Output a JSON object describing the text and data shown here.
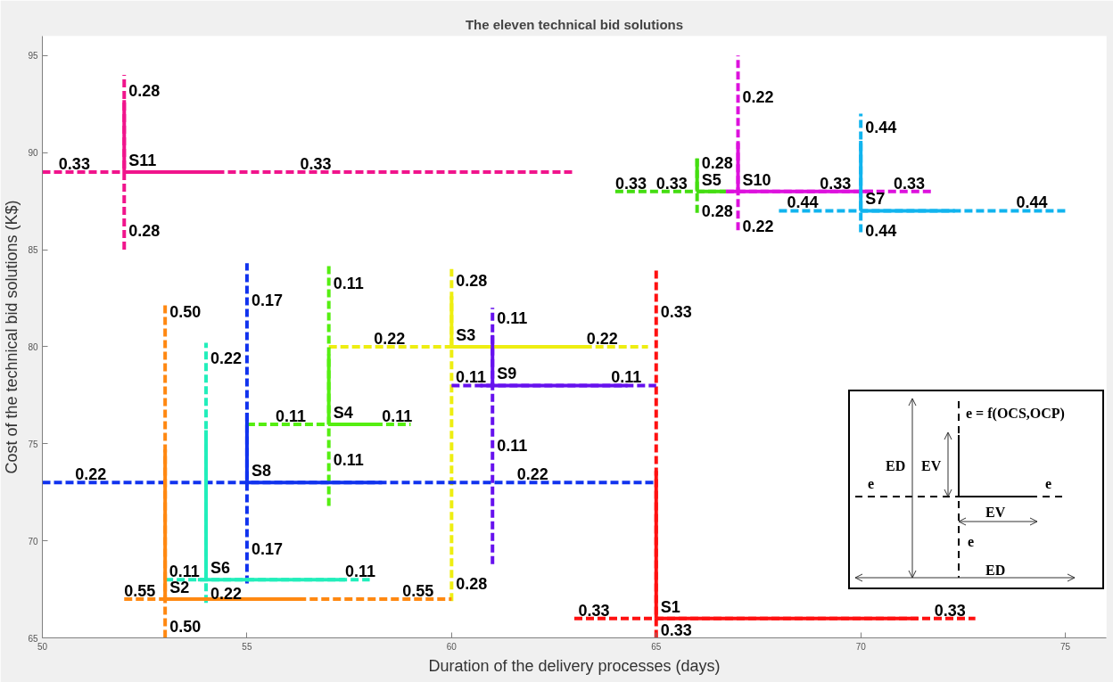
{
  "chart_data": {
    "type": "line",
    "title": "The eleven technical bid solutions",
    "xlabel": "Duration of the delivery processes (days)",
    "ylabel": "Cost of the technical bid solutions (K$)",
    "xlim": [
      50,
      76
    ],
    "ylim": [
      65,
      96
    ],
    "xticks": [
      50,
      55,
      60,
      65,
      70,
      75
    ],
    "yticks": [
      65,
      70,
      75,
      80,
      85,
      90,
      95
    ],
    "grid": false,
    "series": [
      {
        "color": "#f0148c",
        "line_style": "dashed",
        "x": [
          50,
          63
        ],
        "values": [
          89,
          89
        ]
      },
      {
        "color": "#f0148c",
        "line_style": "dashed",
        "x": [
          52,
          52
        ],
        "values": [
          85,
          94
        ]
      },
      {
        "color": "#f0148c",
        "line_style": "solid",
        "x": [
          52,
          54.3
        ],
        "values": [
          89,
          89
        ]
      },
      {
        "color": "#f0148c",
        "line_style": "solid",
        "x": [
          52,
          52
        ],
        "values": [
          89,
          92.7
        ]
      },
      {
        "color": "#dd11dd",
        "line_style": "dashed",
        "x": [
          66.7,
          71.8
        ],
        "values": [
          88,
          88
        ]
      },
      {
        "color": "#dd11dd",
        "line_style": "dashed",
        "x": [
          67,
          67
        ],
        "values": [
          86,
          95
        ]
      },
      {
        "color": "#dd11dd",
        "line_style": "solid",
        "x": [
          66.7,
          70.3
        ],
        "values": [
          88,
          88
        ]
      },
      {
        "color": "#dd11dd",
        "line_style": "solid",
        "x": [
          67,
          67
        ],
        "values": [
          88,
          90.5
        ]
      },
      {
        "color": "#44dd11",
        "line_style": "dashed",
        "x": [
          64,
          66.7
        ],
        "values": [
          88,
          88
        ]
      },
      {
        "color": "#44dd11",
        "line_style": "dashed",
        "x": [
          66,
          66
        ],
        "values": [
          86.9,
          89.7
        ]
      },
      {
        "color": "#44dd11",
        "line_style": "solid",
        "x": [
          66,
          66.7
        ],
        "values": [
          88,
          88
        ]
      },
      {
        "color": "#44dd11",
        "line_style": "solid",
        "x": [
          66,
          66
        ],
        "values": [
          88,
          89.7
        ]
      },
      {
        "color": "#11b4ee",
        "line_style": "dashed",
        "x": [
          68,
          75
        ],
        "values": [
          87,
          87
        ]
      },
      {
        "color": "#11b4ee",
        "line_style": "dashed",
        "x": [
          70,
          70
        ],
        "values": [
          85.9,
          92
        ]
      },
      {
        "color": "#11b4ee",
        "line_style": "solid",
        "x": [
          70,
          72.3
        ],
        "values": [
          87,
          87
        ]
      },
      {
        "color": "#11b4ee",
        "line_style": "solid",
        "x": [
          70,
          70
        ],
        "values": [
          87,
          90.6
        ]
      },
      {
        "color": "#ff1111",
        "line_style": "dashed",
        "x": [
          63,
          72.8
        ],
        "values": [
          66,
          66
        ]
      },
      {
        "color": "#ff1111",
        "line_style": "dashed",
        "x": [
          65,
          65
        ],
        "values": [
          65,
          84
        ]
      },
      {
        "color": "#ff1111",
        "line_style": "solid",
        "x": [
          65,
          71.4
        ],
        "values": [
          66,
          66
        ]
      },
      {
        "color": "#ff1111",
        "line_style": "solid",
        "x": [
          65,
          65
        ],
        "values": [
          66,
          73.6
        ]
      },
      {
        "color": "#eeee11",
        "line_style": "dashed",
        "x": [
          57,
          64.8
        ],
        "values": [
          80,
          80
        ]
      },
      {
        "color": "#eeee11",
        "line_style": "dashed",
        "x": [
          60,
          60
        ],
        "values": [
          66.9,
          84
        ]
      },
      {
        "color": "#eeee11",
        "line_style": "solid",
        "x": [
          60,
          63.3
        ],
        "values": [
          80,
          80
        ]
      },
      {
        "color": "#eeee11",
        "line_style": "solid",
        "x": [
          60,
          60
        ],
        "values": [
          80,
          82.6
        ]
      },
      {
        "color": "#6611ee",
        "line_style": "dashed",
        "x": [
          60,
          65
        ],
        "values": [
          78,
          78
        ]
      },
      {
        "color": "#6611ee",
        "line_style": "dashed",
        "x": [
          61,
          61
        ],
        "values": [
          68.8,
          82
        ]
      },
      {
        "color": "#6611ee",
        "line_style": "solid",
        "x": [
          60.7,
          64.3
        ],
        "values": [
          78,
          78
        ]
      },
      {
        "color": "#6611ee",
        "line_style": "solid",
        "x": [
          61,
          61
        ],
        "values": [
          78,
          80.6
        ]
      },
      {
        "color": "#1133ee",
        "line_style": "dashed",
        "x": [
          50,
          65
        ],
        "values": [
          73,
          73
        ]
      },
      {
        "color": "#1133ee",
        "line_style": "dashed",
        "x": [
          55,
          55
        ],
        "values": [
          67.8,
          84.3
        ]
      },
      {
        "color": "#1133ee",
        "line_style": "solid",
        "x": [
          55,
          58.3
        ],
        "values": [
          73,
          73
        ]
      },
      {
        "color": "#1133ee",
        "line_style": "solid",
        "x": [
          55,
          55
        ],
        "values": [
          73,
          76.6
        ]
      },
      {
        "color": "#55ee11",
        "line_style": "dashed",
        "x": [
          55,
          59
        ],
        "values": [
          76,
          76
        ]
      },
      {
        "color": "#55ee11",
        "line_style": "dashed",
        "x": [
          57,
          57
        ],
        "values": [
          71.8,
          84.2
        ]
      },
      {
        "color": "#55ee11",
        "line_style": "solid",
        "x": [
          57,
          58.3
        ],
        "values": [
          76,
          76
        ]
      },
      {
        "color": "#55ee11",
        "line_style": "solid",
        "x": [
          57,
          57
        ],
        "values": [
          76,
          79.6
        ]
      },
      {
        "color": "#22eebb",
        "line_style": "dashed",
        "x": [
          53,
          58
        ],
        "values": [
          68,
          68
        ]
      },
      {
        "color": "#22eebb",
        "line_style": "dashed",
        "x": [
          54,
          54
        ],
        "values": [
          66.8,
          80.2
        ]
      },
      {
        "color": "#22eebb",
        "line_style": "solid",
        "x": [
          53.8,
          57.4
        ],
        "values": [
          68,
          68
        ]
      },
      {
        "color": "#22eebb",
        "line_style": "solid",
        "x": [
          54,
          54
        ],
        "values": [
          68,
          75.7
        ]
      },
      {
        "color": "#ff8811",
        "line_style": "dashed",
        "x": [
          52,
          60
        ],
        "values": [
          67,
          67
        ]
      },
      {
        "color": "#ff8811",
        "line_style": "dashed",
        "x": [
          53,
          53
        ],
        "values": [
          65,
          82.2
        ]
      },
      {
        "color": "#ff8811",
        "line_style": "solid",
        "x": [
          53,
          56.3
        ],
        "values": [
          67,
          67
        ]
      },
      {
        "color": "#ff8811",
        "line_style": "solid",
        "x": [
          53,
          53
        ],
        "values": [
          67,
          74.7
        ]
      }
    ],
    "annotations": [
      {
        "text": "0.33",
        "x": 50.4,
        "y": 89
      },
      {
        "text": "S11",
        "x": 52,
        "y": 89
      },
      {
        "text": "0.33",
        "x": 56.3,
        "y": 89
      },
      {
        "text": "0.28",
        "x": 52,
        "y": 93.2
      },
      {
        "text": "0.28",
        "x": 52,
        "y": 86.0
      },
      {
        "text": "S10",
        "x": 67,
        "y": 88
      },
      {
        "text": "0.22",
        "x": 67,
        "y": 92.9
      },
      {
        "text": "0.22",
        "x": 67,
        "y": 86.2
      },
      {
        "text": "0.33",
        "x": 69.0,
        "y": 88
      },
      {
        "text": "0.33",
        "x": 70.8,
        "y": 88
      },
      {
        "text": "0.33",
        "x": 64.0,
        "y": 88
      },
      {
        "text": "0.33",
        "x": 65.0,
        "y": 88
      },
      {
        "text": "S5",
        "x": 66,
        "y": 88
      },
      {
        "text": "0.28",
        "x": 66,
        "y": 89.5
      },
      {
        "text": "0.28",
        "x": 66,
        "y": 87.0
      },
      {
        "text": "S7",
        "x": 70,
        "y": 87
      },
      {
        "text": "0.44",
        "x": 70,
        "y": 91.3
      },
      {
        "text": "0.44",
        "x": 70,
        "y": 86.0
      },
      {
        "text": "0.44",
        "x": 68.2,
        "y": 87
      },
      {
        "text": "0.44",
        "x": 73.8,
        "y": 87
      },
      {
        "text": "0.33",
        "x": 63.1,
        "y": 66
      },
      {
        "text": "S1",
        "x": 65,
        "y": 66
      },
      {
        "text": "0.33",
        "x": 65,
        "y": 65.4
      },
      {
        "text": "0.33",
        "x": 65,
        "y": 81.8
      },
      {
        "text": "0.33",
        "x": 71.8,
        "y": 66
      },
      {
        "text": "0.22",
        "x": 58.1,
        "y": 80
      },
      {
        "text": "S3",
        "x": 60,
        "y": 80
      },
      {
        "text": "0.22",
        "x": 63.3,
        "y": 80
      },
      {
        "text": "0.28",
        "x": 60,
        "y": 83.4
      },
      {
        "text": "0.28",
        "x": 60,
        "y": 67.8
      },
      {
        "text": "0.11",
        "x": 61,
        "y": 81.5
      },
      {
        "text": "0.11",
        "x": 60.1,
        "y": 78
      },
      {
        "text": "S9",
        "x": 61,
        "y": 78
      },
      {
        "text": "0.11",
        "x": 63.9,
        "y": 78
      },
      {
        "text": "0.11",
        "x": 61,
        "y": 74.9
      },
      {
        "text": "0.22",
        "x": 50.8,
        "y": 73
      },
      {
        "text": "S8",
        "x": 55,
        "y": 73
      },
      {
        "text": "0.22",
        "x": 61.6,
        "y": 73
      },
      {
        "text": "0.17",
        "x": 55,
        "y": 82.4
      },
      {
        "text": "0.17",
        "x": 55,
        "y": 69.6
      },
      {
        "text": "0.11",
        "x": 55.7,
        "y": 76
      },
      {
        "text": "S4",
        "x": 57,
        "y": 76
      },
      {
        "text": "0.11",
        "x": 58.3,
        "y": 76
      },
      {
        "text": "0.11",
        "x": 57,
        "y": 83.3
      },
      {
        "text": "0.11",
        "x": 57,
        "y": 74.2
      },
      {
        "text": "0.11",
        "x": 53.1,
        "y": 68
      },
      {
        "text": "S6",
        "x": 54,
        "y": 68
      },
      {
        "text": "0.11",
        "x": 57.4,
        "y": 68
      },
      {
        "text": "0.22",
        "x": 54,
        "y": 79.4
      },
      {
        "text": "0.22",
        "x": 54,
        "y": 67.3
      },
      {
        "text": "0.55",
        "x": 52.0,
        "y": 67
      },
      {
        "text": "S2",
        "x": 53,
        "y": 67
      },
      {
        "text": "0.55",
        "x": 58.8,
        "y": 67
      },
      {
        "text": "0.50",
        "x": 53,
        "y": 81.8
      },
      {
        "text": "0.50",
        "x": 53,
        "y": 65.6
      },
      "e = f(OCS,OCP)",
      "ED",
      "EV",
      "e",
      "e",
      "EV",
      "e",
      "ED"
    ]
  }
}
